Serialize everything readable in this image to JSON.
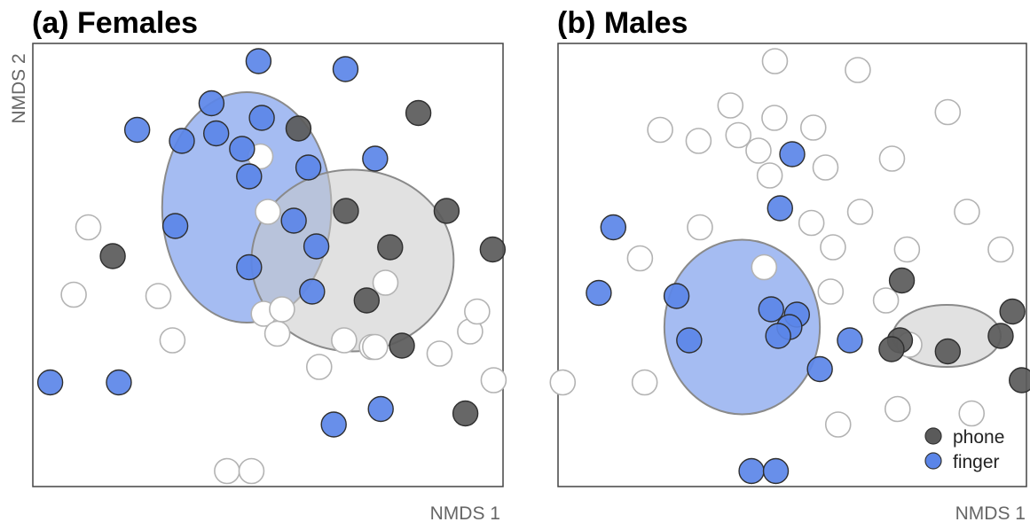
{
  "chart_data": [
    {
      "type": "scatter",
      "title": "(a) Females",
      "xlabel": "NMDS 1",
      "ylabel": "NMDS 2",
      "xlim": [
        0,
        1
      ],
      "ylim": [
        0,
        1
      ],
      "grid": false,
      "series": [
        {
          "role": "unlabeled",
          "points": [
            [
              0.118,
              0.585
            ],
            [
              0.087,
              0.433
            ],
            [
              0.267,
              0.43
            ],
            [
              0.297,
              0.33
            ],
            [
              0.484,
              0.745
            ],
            [
              0.5,
              0.62
            ],
            [
              0.491,
              0.39
            ],
            [
              0.52,
              0.345
            ],
            [
              0.53,
              0.4
            ],
            [
              0.609,
              0.27
            ],
            [
              0.662,
              0.33
            ],
            [
              0.721,
              0.315
            ],
            [
              0.75,
              0.46
            ],
            [
              0.728,
              0.315
            ],
            [
              0.865,
              0.3
            ],
            [
              0.93,
              0.35
            ],
            [
              0.945,
              0.395
            ],
            [
              0.98,
              0.24
            ],
            [
              0.413,
              0.035
            ],
            [
              0.465,
              0.035
            ]
          ]
        },
        {
          "name": "phone",
          "points": [
            [
              0.17,
              0.52
            ],
            [
              0.565,
              0.808
            ],
            [
              0.666,
              0.622
            ],
            [
              0.76,
              0.54
            ],
            [
              0.88,
              0.622
            ],
            [
              0.978,
              0.535
            ],
            [
              0.71,
              0.42
            ],
            [
              0.785,
              0.318
            ],
            [
              0.82,
              0.843
            ],
            [
              0.92,
              0.165
            ]
          ]
        },
        {
          "name": "finger",
          "points": [
            [
              0.48,
              0.96
            ],
            [
              0.665,
              0.942
            ],
            [
              0.38,
              0.865
            ],
            [
              0.222,
              0.805
            ],
            [
              0.317,
              0.78
            ],
            [
              0.39,
              0.797
            ],
            [
              0.487,
              0.832
            ],
            [
              0.445,
              0.762
            ],
            [
              0.46,
              0.7
            ],
            [
              0.586,
              0.72
            ],
            [
              0.728,
              0.74
            ],
            [
              0.303,
              0.588
            ],
            [
              0.555,
              0.6
            ],
            [
              0.603,
              0.542
            ],
            [
              0.46,
              0.495
            ],
            [
              0.594,
              0.44
            ],
            [
              0.037,
              0.235
            ],
            [
              0.183,
              0.235
            ],
            [
              0.64,
              0.14
            ],
            [
              0.74,
              0.175
            ]
          ]
        }
      ],
      "ellipses": [
        {
          "group": "finger",
          "center": [
            0.455,
            0.63
          ],
          "radii": [
            0.18,
            0.26
          ],
          "fill": "#5b85e8"
        },
        {
          "group": "phone",
          "center": [
            0.68,
            0.51
          ],
          "radii": [
            0.215,
            0.205
          ],
          "fill": "#c8c8c8"
        }
      ]
    },
    {
      "type": "scatter",
      "title": "(b) Males",
      "xlabel": "NMDS 1",
      "ylabel": "",
      "xlim": [
        0,
        1
      ],
      "ylim": [
        0,
        1
      ],
      "grid": false,
      "legend": {
        "position": "bottom-right",
        "entries": [
          "phone",
          "finger"
        ]
      },
      "series": [
        {
          "role": "unlabeled",
          "points": [
            [
              0.463,
              0.96
            ],
            [
              0.64,
              0.94
            ],
            [
              0.368,
              0.86
            ],
            [
              0.462,
              0.832
            ],
            [
              0.545,
              0.81
            ],
            [
              0.832,
              0.845
            ],
            [
              0.218,
              0.805
            ],
            [
              0.3,
              0.78
            ],
            [
              0.385,
              0.793
            ],
            [
              0.428,
              0.758
            ],
            [
              0.571,
              0.72
            ],
            [
              0.452,
              0.702
            ],
            [
              0.713,
              0.74
            ],
            [
              0.303,
              0.585
            ],
            [
              0.541,
              0.595
            ],
            [
              0.645,
              0.62
            ],
            [
              0.873,
              0.62
            ],
            [
              0.587,
              0.54
            ],
            [
              0.745,
              0.535
            ],
            [
              0.945,
              0.535
            ],
            [
              0.175,
              0.515
            ],
            [
              0.44,
              0.495
            ],
            [
              0.582,
              0.44
            ],
            [
              0.7,
              0.42
            ],
            [
              0.01,
              0.235
            ],
            [
              0.185,
              0.235
            ],
            [
              0.598,
              0.14
            ],
            [
              0.725,
              0.175
            ],
            [
              0.883,
              0.165
            ],
            [
              0.75,
              0.32
            ]
          ]
        },
        {
          "name": "phone",
          "points": [
            [
              0.734,
              0.465
            ],
            [
              0.97,
              0.395
            ],
            [
              0.945,
              0.34
            ],
            [
              0.73,
              0.33
            ],
            [
              0.712,
              0.31
            ],
            [
              0.832,
              0.305
            ],
            [
              0.99,
              0.24
            ]
          ]
        },
        {
          "name": "finger",
          "points": [
            [
              0.5,
              0.75
            ],
            [
              0.474,
              0.628
            ],
            [
              0.118,
              0.585
            ],
            [
              0.087,
              0.437
            ],
            [
              0.253,
              0.43
            ],
            [
              0.455,
              0.4
            ],
            [
              0.51,
              0.388
            ],
            [
              0.494,
              0.36
            ],
            [
              0.47,
              0.34
            ],
            [
              0.28,
              0.33
            ],
            [
              0.623,
              0.33
            ],
            [
              0.559,
              0.265
            ],
            [
              0.413,
              0.035
            ],
            [
              0.465,
              0.035
            ]
          ]
        }
      ],
      "ellipses": [
        {
          "group": "finger",
          "center": [
            0.393,
            0.36
          ],
          "radii": [
            0.166,
            0.197
          ],
          "fill": "#5b85e8"
        },
        {
          "group": "phone",
          "center": [
            0.83,
            0.34
          ],
          "radii": [
            0.115,
            0.07
          ],
          "fill": "#c8c8c8"
        }
      ]
    }
  ],
  "colors": {
    "phone": "#5a5a5a",
    "finger": "#5b85e8",
    "unlabeled_stroke": "#b3b3b3",
    "ellipse_stroke": "#8a8a8a"
  }
}
